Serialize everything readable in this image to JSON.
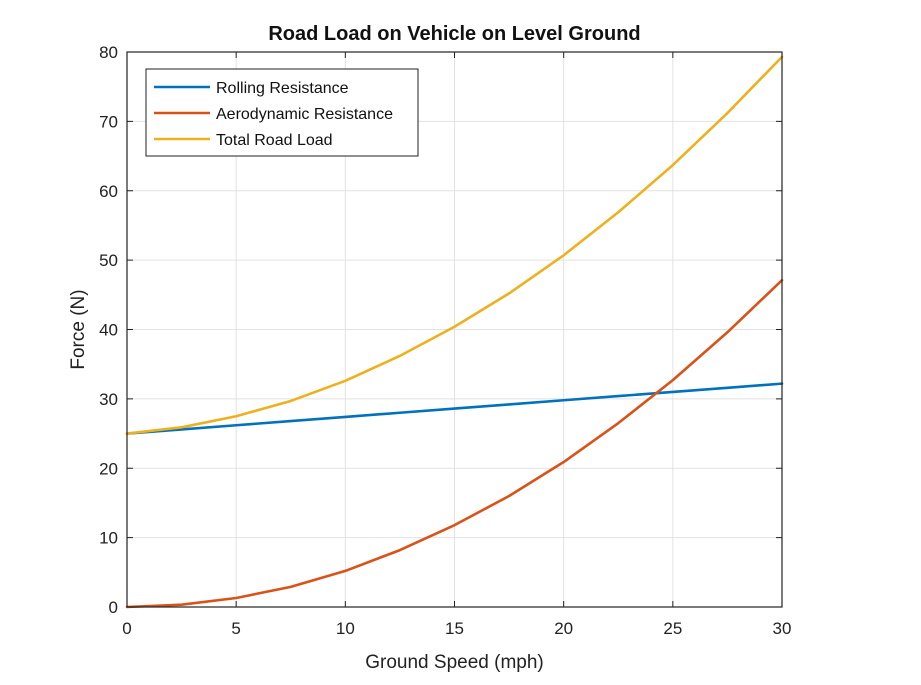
{
  "chart_data": {
    "type": "line",
    "title": "Road Load on Vehicle on Level Ground",
    "xlabel": "Ground Speed (mph)",
    "ylabel": "Force (N)",
    "xlim": [
      0,
      30
    ],
    "ylim": [
      0,
      80
    ],
    "xticks": [
      0,
      5,
      10,
      15,
      20,
      25,
      30
    ],
    "yticks": [
      0,
      10,
      20,
      30,
      40,
      50,
      60,
      70,
      80
    ],
    "grid": true,
    "legend_position": "top-left",
    "x": [
      0,
      2.5,
      5,
      7.5,
      10,
      12.5,
      15,
      17.5,
      20,
      22.5,
      25,
      27.5,
      30
    ],
    "series": [
      {
        "name": "Rolling Resistance",
        "color": "#0072bd",
        "values": [
          25.0,
          25.6,
          26.2,
          26.8,
          27.4,
          28.0,
          28.6,
          29.2,
          29.8,
          30.4,
          31.0,
          31.6,
          32.2
        ]
      },
      {
        "name": "Aerodynamic Resistance",
        "color": "#d95319",
        "values": [
          0.0,
          0.33,
          1.3,
          2.9,
          5.2,
          8.2,
          11.8,
          16.0,
          20.9,
          26.5,
          32.7,
          39.6,
          47.1
        ]
      },
      {
        "name": "Total Road Load",
        "color": "#edb120",
        "values": [
          25.0,
          25.9,
          27.5,
          29.7,
          32.6,
          36.2,
          40.4,
          45.2,
          50.7,
          56.9,
          63.7,
          71.2,
          79.3
        ]
      }
    ]
  }
}
